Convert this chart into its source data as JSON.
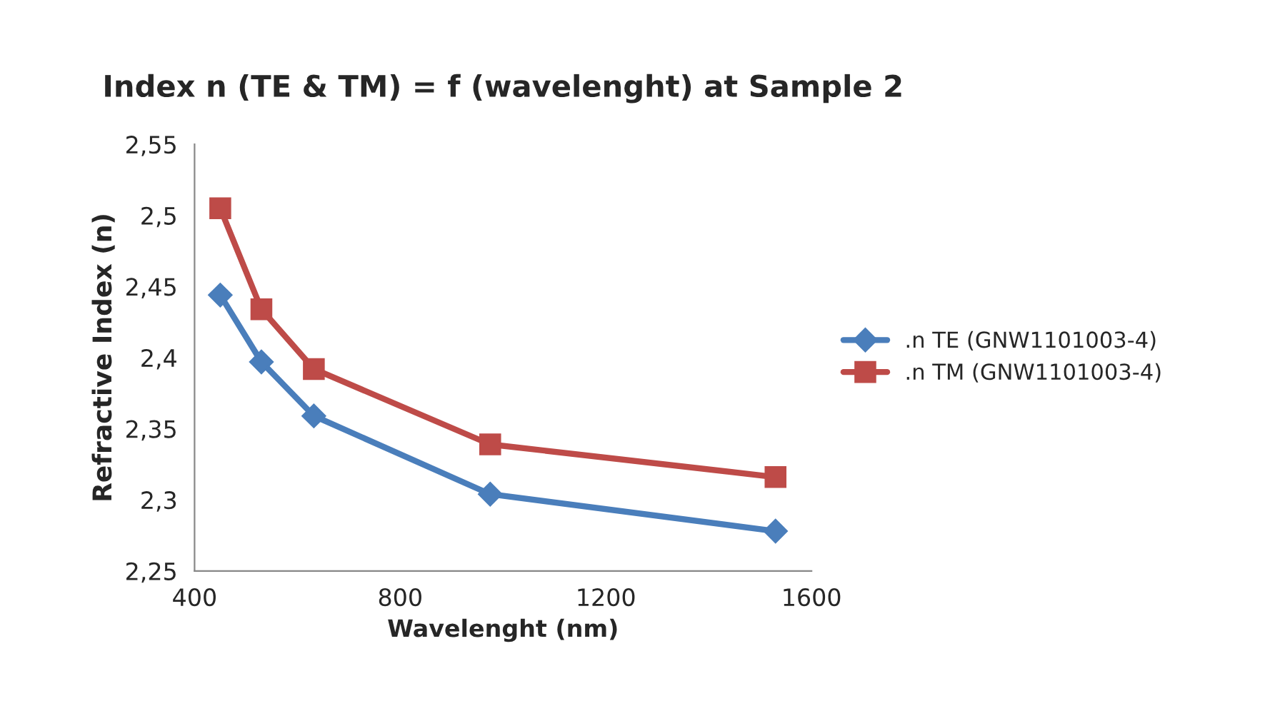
{
  "chart_data": {
    "type": "line",
    "title": "Index n (TE & TM) = f (wavelenght) at Sample 2",
    "xlabel": "Wavelenght (nm)",
    "ylabel": "Refractive Index (n)",
    "x": [
      450,
      530,
      632,
      975,
      1530
    ],
    "series": [
      {
        "name": ".n TE (GNW1101003-4)",
        "color": "#4a7ebb",
        "marker": "diamond",
        "values": [
          2.444,
          2.397,
          2.359,
          2.304,
          2.278
        ]
      },
      {
        "name": ".n TM (GNW1101003-4)",
        "color": "#be4b48",
        "marker": "square",
        "values": [
          2.505,
          2.434,
          2.392,
          2.339,
          2.316
        ]
      }
    ],
    "xlim": [
      400,
      1600
    ],
    "xticks": [
      400,
      800,
      1200,
      1600
    ],
    "ylim": [
      2.25,
      2.55
    ],
    "yticks": [
      {
        "value": 2.25,
        "label": "2,25"
      },
      {
        "value": 2.3,
        "label": "2,3"
      },
      {
        "value": 2.35,
        "label": "2,35"
      },
      {
        "value": 2.4,
        "label": "2,4"
      },
      {
        "value": 2.45,
        "label": "2,45"
      },
      {
        "value": 2.5,
        "label": "2,5"
      },
      {
        "value": 2.55,
        "label": "2,55"
      }
    ],
    "grid": false,
    "legend": "right"
  }
}
